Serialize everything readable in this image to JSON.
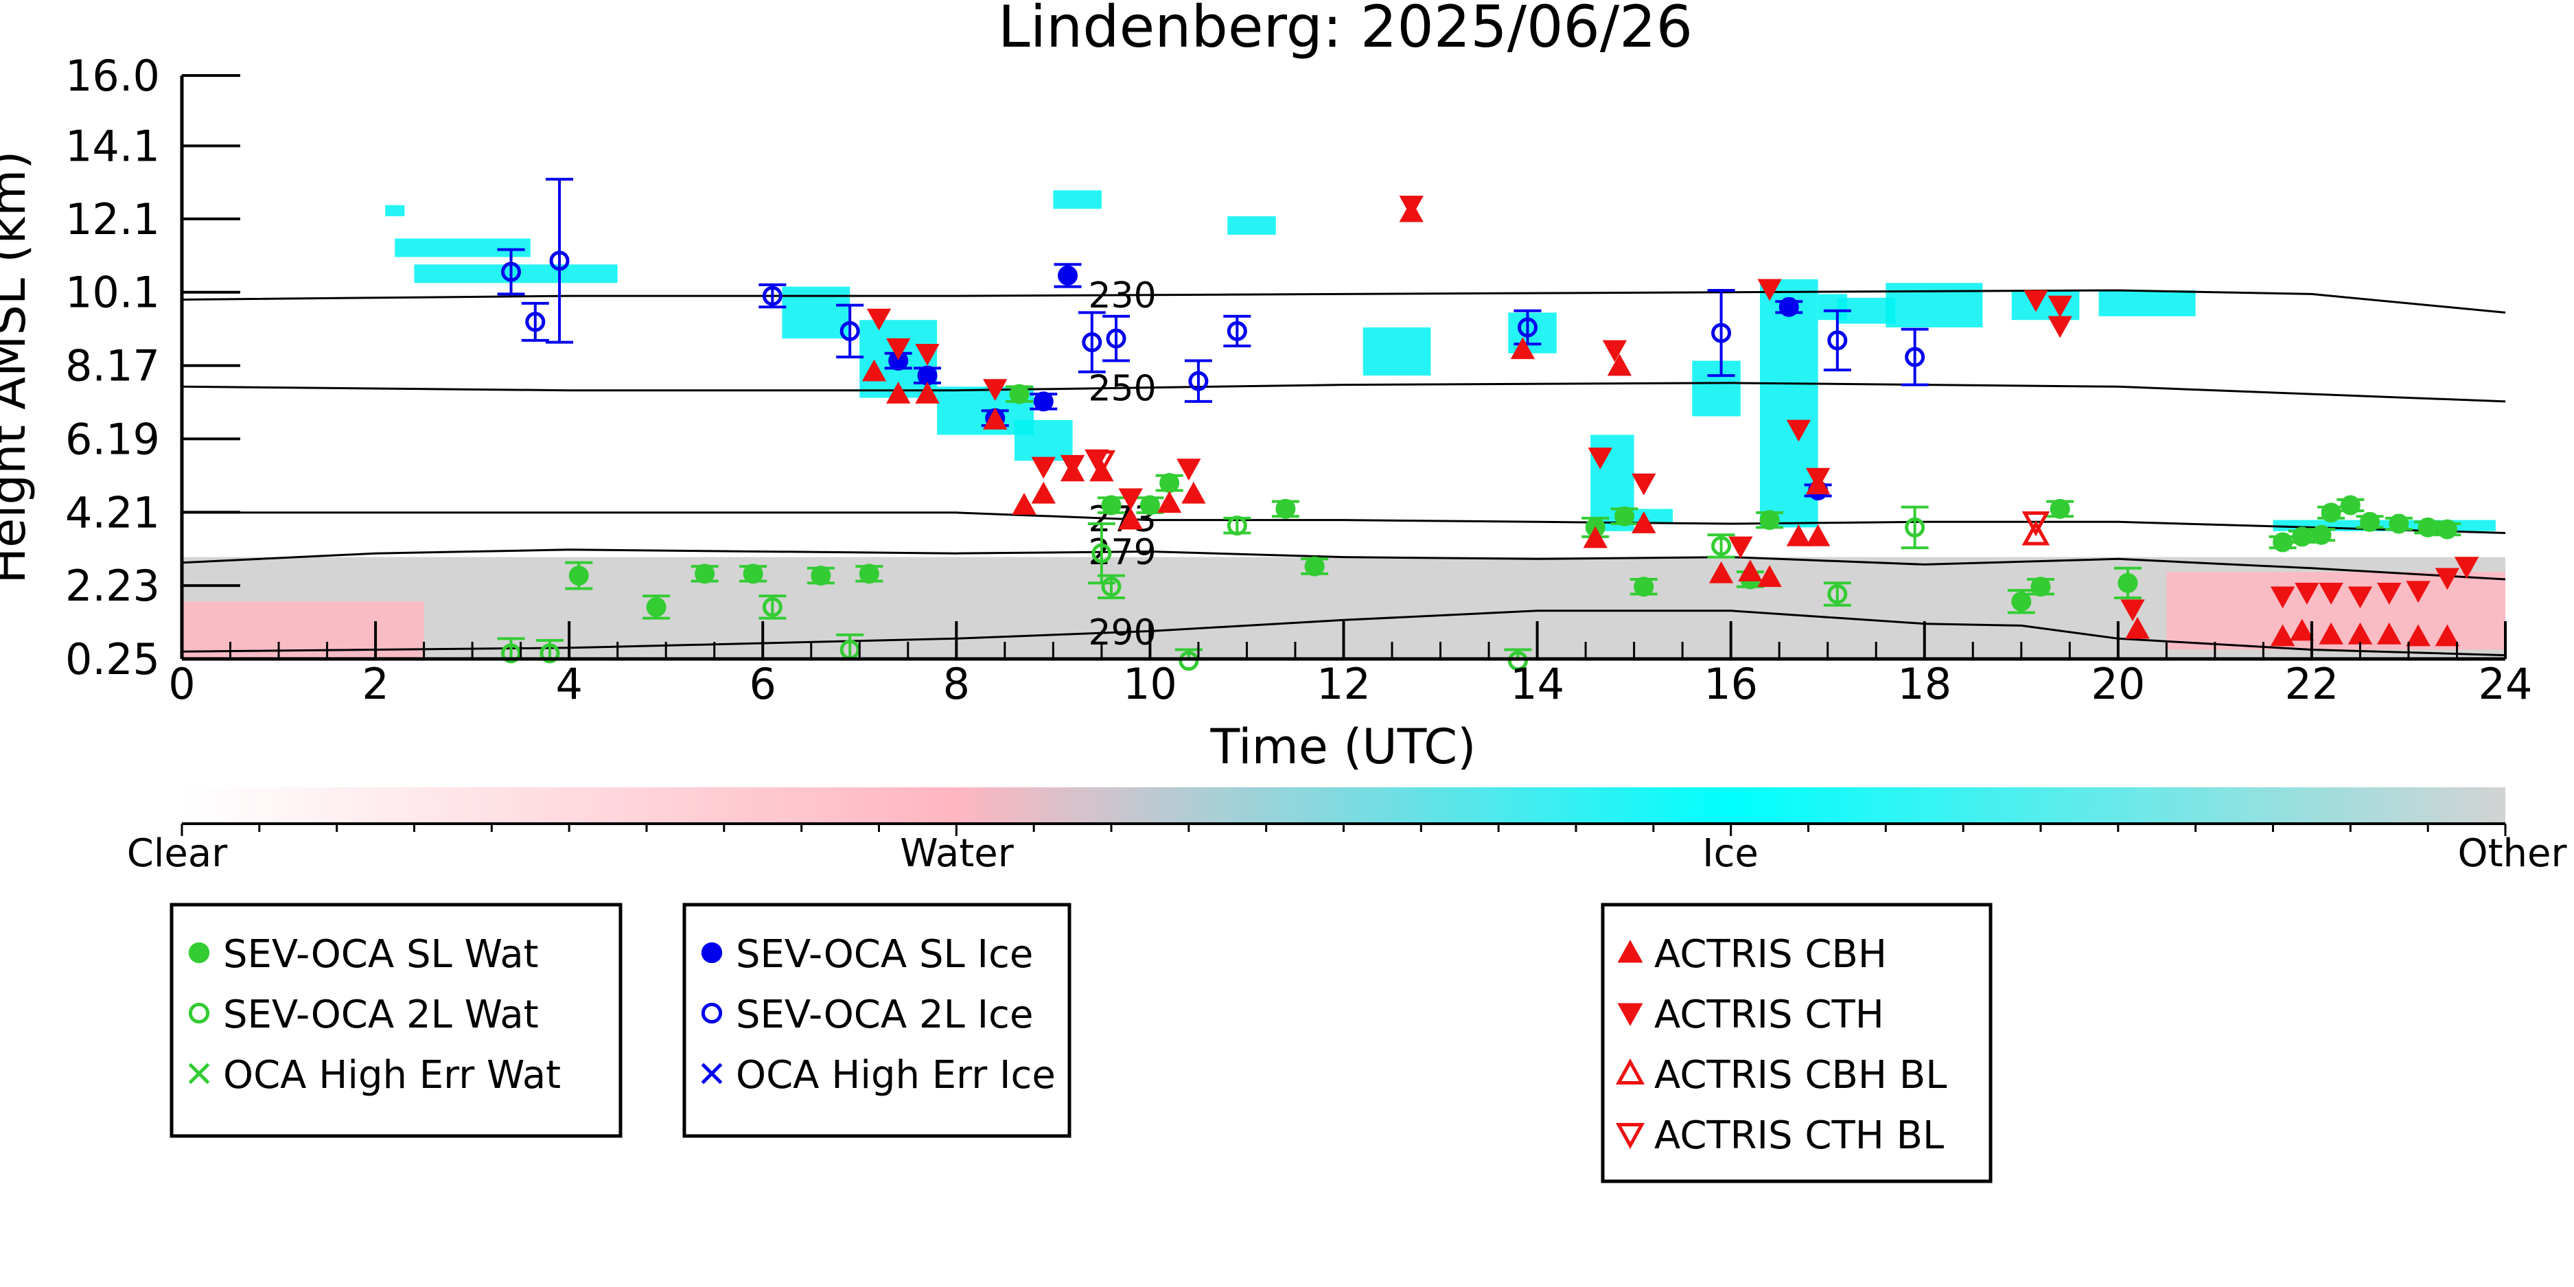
{
  "chart_data": {
    "type": "scatter",
    "title": "Lindenberg: 2025/06/26",
    "xlabel": "Time (UTC)",
    "ylabel": "Height AMSL (km)",
    "xlim": [
      0,
      24
    ],
    "ylim": [
      0.25,
      16.0
    ],
    "x_ticks": [
      "0",
      "2",
      "4",
      "6",
      "8",
      "10",
      "12",
      "14",
      "16",
      "18",
      "20",
      "22",
      "24"
    ],
    "y_ticks": [
      "0.25",
      "2.23",
      "4.21",
      "6.19",
      "8.17",
      "10.1",
      "12.1",
      "14.1",
      "16.0"
    ],
    "y_tick_values": [
      0.25,
      2.23,
      4.21,
      6.19,
      8.17,
      10.15,
      12.13,
      14.1,
      16.0
    ],
    "colors": {
      "water_marker": "#33cc33",
      "ice_marker": "#0000ee",
      "actris": "#ee1111",
      "ice_mask": "#00f2f2",
      "water_mask": "#ffb6c1",
      "other_mask": "#cfcfcf"
    },
    "colorbar": {
      "labels": [
        "Clear",
        "Water",
        "Ice",
        "Other"
      ],
      "stops": [
        "#ffffff",
        "#ffb6c1",
        "#00ffff",
        "#d3d3d3"
      ]
    },
    "contours": [
      {
        "label": "230",
        "label_x": 9.7,
        "points": [
          [
            0,
            9.95
          ],
          [
            4,
            10.05
          ],
          [
            8,
            10.05
          ],
          [
            12,
            10.1
          ],
          [
            16,
            10.15
          ],
          [
            20,
            10.2
          ],
          [
            22,
            10.1
          ],
          [
            24,
            9.6
          ]
        ]
      },
      {
        "label": "250",
        "label_x": 9.7,
        "points": [
          [
            0,
            7.6
          ],
          [
            4,
            7.5
          ],
          [
            8,
            7.5
          ],
          [
            12,
            7.65
          ],
          [
            16,
            7.7
          ],
          [
            20,
            7.6
          ],
          [
            22,
            7.4
          ],
          [
            24,
            7.2
          ]
        ]
      },
      {
        "label": "273",
        "label_x": 9.7,
        "points": [
          [
            0,
            4.2
          ],
          [
            4,
            4.2
          ],
          [
            8,
            4.2
          ],
          [
            10,
            4.0
          ],
          [
            12,
            4.0
          ],
          [
            14,
            3.95
          ],
          [
            16,
            3.9
          ],
          [
            18,
            3.95
          ],
          [
            20,
            3.95
          ],
          [
            22,
            3.8
          ],
          [
            24,
            3.65
          ]
        ]
      },
      {
        "label": "279",
        "label_x": 9.7,
        "points": [
          [
            0,
            2.85
          ],
          [
            2,
            3.1
          ],
          [
            4,
            3.2
          ],
          [
            8,
            3.1
          ],
          [
            10,
            3.15
          ],
          [
            12,
            3.0
          ],
          [
            14,
            2.95
          ],
          [
            16,
            3.0
          ],
          [
            18,
            2.8
          ],
          [
            20,
            2.95
          ],
          [
            22,
            2.7
          ],
          [
            24,
            2.4
          ]
        ]
      },
      {
        "label": "290",
        "label_x": 9.7,
        "points": [
          [
            0,
            0.45
          ],
          [
            4,
            0.55
          ],
          [
            8,
            0.8
          ],
          [
            10,
            1.0
          ],
          [
            12,
            1.3
          ],
          [
            14,
            1.55
          ],
          [
            16,
            1.55
          ],
          [
            18,
            1.2
          ],
          [
            19,
            1.15
          ],
          [
            20,
            0.8
          ],
          [
            22,
            0.5
          ],
          [
            24,
            0.35
          ]
        ]
      }
    ],
    "series": [
      {
        "name": "SEV-OCA SL Wat",
        "marker": "filled-circle",
        "color": "#33cc33",
        "points": [
          [
            4.1,
            2.5,
            0.35
          ],
          [
            4.9,
            1.65,
            0.3
          ],
          [
            5.4,
            2.55,
            0.2
          ],
          [
            5.9,
            2.55,
            0.2
          ],
          [
            6.6,
            2.5,
            0.2
          ],
          [
            7.1,
            2.55,
            0.2
          ],
          [
            8.65,
            7.4,
            0.2
          ],
          [
            9.6,
            4.4,
            0.2
          ],
          [
            10.0,
            4.4,
            0.2
          ],
          [
            10.2,
            5.0,
            0.2
          ],
          [
            11.4,
            4.3,
            0.2
          ],
          [
            11.7,
            2.75,
            0.2
          ],
          [
            14.6,
            3.8,
            0.25
          ],
          [
            14.9,
            4.1,
            0.2
          ],
          [
            15.1,
            2.2,
            0.2
          ],
          [
            16.2,
            2.4,
            0.2
          ],
          [
            16.4,
            4.0,
            0.2
          ],
          [
            19.0,
            1.8,
            0.3
          ],
          [
            19.2,
            2.2,
            0.2
          ],
          [
            19.4,
            4.3,
            0.2
          ],
          [
            20.1,
            2.3,
            0.4
          ],
          [
            21.7,
            3.4,
            0.15
          ],
          [
            21.9,
            3.55,
            0.15
          ],
          [
            22.1,
            3.6,
            0.15
          ],
          [
            22.2,
            4.2,
            0.15
          ],
          [
            22.4,
            4.4,
            0.15
          ],
          [
            22.6,
            3.95,
            0.15
          ],
          [
            22.9,
            3.9,
            0.15
          ],
          [
            23.2,
            3.8,
            0.15
          ],
          [
            23.4,
            3.75,
            0.15
          ]
        ]
      },
      {
        "name": "SEV-OCA 2L Wat",
        "marker": "open-circle",
        "color": "#33cc33",
        "points": [
          [
            3.4,
            0.4,
            0.4
          ],
          [
            3.8,
            0.4,
            0.35
          ],
          [
            6.1,
            1.65,
            0.3
          ],
          [
            6.9,
            0.5,
            0.4
          ],
          [
            9.5,
            3.1,
            0.8
          ],
          [
            9.6,
            2.2,
            0.3
          ],
          [
            10.4,
            0.2,
            0.3
          ],
          [
            10.9,
            3.85,
            0.2
          ],
          [
            13.8,
            0.2,
            0.3
          ],
          [
            15.9,
            3.3,
            0.3
          ],
          [
            17.1,
            2.0,
            0.3
          ],
          [
            17.9,
            3.8,
            0.55
          ]
        ]
      },
      {
        "name": "OCA High Err Wat",
        "marker": "x",
        "color": "#33cc33",
        "points": []
      },
      {
        "name": "SEV-OCA SL Ice",
        "marker": "filled-circle",
        "color": "#0000ee",
        "points": [
          [
            7.4,
            8.3,
            0.2
          ],
          [
            7.7,
            7.9,
            0.2
          ],
          [
            8.4,
            6.75,
            0.2
          ],
          [
            8.9,
            7.2,
            0.2
          ],
          [
            9.15,
            10.6,
            0.3
          ],
          [
            16.6,
            9.75,
            0.15
          ],
          [
            16.9,
            4.8,
            0.15
          ]
        ]
      },
      {
        "name": "SEV-OCA 2L Ice",
        "marker": "open-circle",
        "color": "#0000ee",
        "points": [
          [
            3.4,
            10.7,
            0.6
          ],
          [
            3.65,
            9.35,
            0.5
          ],
          [
            3.9,
            11.0,
            2.2
          ],
          [
            6.1,
            10.05,
            0.3
          ],
          [
            6.9,
            9.1,
            0.7
          ],
          [
            9.4,
            8.8,
            0.8
          ],
          [
            9.65,
            8.9,
            0.6
          ],
          [
            10.5,
            7.75,
            0.55
          ],
          [
            10.9,
            9.1,
            0.4
          ],
          [
            13.9,
            9.2,
            0.45
          ],
          [
            15.9,
            9.05,
            1.15
          ],
          [
            17.1,
            8.85,
            0.8
          ],
          [
            17.9,
            8.4,
            0.75
          ]
        ]
      },
      {
        "name": "OCA High Err Ice",
        "marker": "x",
        "color": "#0000ee",
        "points": []
      },
      {
        "name": "ACTRIS CBH",
        "marker": "triangle-up",
        "color": "#ee1111",
        "points": [
          [
            7.15,
            8.0
          ],
          [
            7.4,
            7.4
          ],
          [
            7.7,
            7.4
          ],
          [
            8.4,
            6.7
          ],
          [
            8.7,
            4.4
          ],
          [
            8.9,
            4.7
          ],
          [
            9.2,
            5.3
          ],
          [
            9.5,
            5.3
          ],
          [
            9.8,
            4.0
          ],
          [
            10.2,
            4.45
          ],
          [
            10.45,
            4.7
          ],
          [
            12.7,
            12.3
          ],
          [
            13.85,
            8.6
          ],
          [
            14.85,
            8.15
          ],
          [
            14.6,
            3.5
          ],
          [
            15.1,
            3.9
          ],
          [
            15.9,
            2.55
          ],
          [
            16.2,
            2.6
          ],
          [
            16.4,
            2.45
          ],
          [
            16.7,
            3.55
          ],
          [
            16.9,
            3.55
          ],
          [
            16.9,
            4.95
          ],
          [
            20.2,
            1.05
          ],
          [
            21.7,
            0.85
          ],
          [
            21.9,
            1.0
          ],
          [
            22.2,
            0.9
          ],
          [
            22.5,
            0.9
          ],
          [
            22.8,
            0.9
          ],
          [
            23.1,
            0.85
          ],
          [
            23.4,
            0.85
          ]
        ]
      },
      {
        "name": "ACTRIS CTH",
        "marker": "triangle-down",
        "color": "#ee1111",
        "points": [
          [
            7.2,
            9.45
          ],
          [
            7.4,
            8.65
          ],
          [
            7.7,
            8.5
          ],
          [
            8.4,
            7.55
          ],
          [
            8.9,
            5.45
          ],
          [
            9.2,
            5.5
          ],
          [
            9.45,
            5.65
          ],
          [
            9.8,
            4.6
          ],
          [
            10.4,
            5.4
          ],
          [
            12.7,
            12.5
          ],
          [
            14.8,
            8.6
          ],
          [
            14.65,
            5.7
          ],
          [
            15.1,
            5.0
          ],
          [
            16.1,
            3.3
          ],
          [
            16.4,
            10.25
          ],
          [
            16.7,
            6.45
          ],
          [
            16.9,
            5.15
          ],
          [
            19.15,
            9.95
          ],
          [
            19.4,
            9.8
          ],
          [
            19.4,
            9.25
          ],
          [
            20.15,
            1.6
          ],
          [
            21.7,
            1.95
          ],
          [
            21.95,
            2.05
          ],
          [
            22.2,
            2.05
          ],
          [
            22.5,
            1.95
          ],
          [
            22.8,
            2.05
          ],
          [
            23.1,
            2.1
          ],
          [
            23.4,
            2.45
          ],
          [
            23.6,
            2.75
          ]
        ]
      },
      {
        "name": "ACTRIS CBH BL",
        "marker": "open-triangle-up",
        "color": "#ee1111",
        "points": [
          [
            19.15,
            3.6
          ]
        ]
      },
      {
        "name": "ACTRIS CTH BL",
        "marker": "open-triangle-down",
        "color": "#ee1111",
        "points": [
          [
            9.5,
            5.6
          ],
          [
            19.15,
            3.95
          ]
        ]
      }
    ],
    "mask": {
      "other": [
        [
          0,
          24,
          0.25,
          3.0
        ]
      ],
      "water": [
        [
          0,
          2.5,
          0.3,
          1.8
        ],
        [
          20.5,
          24,
          0.5,
          2.6
        ]
      ],
      "ice": [
        [
          6.2,
          6.9,
          8.9,
          10.3
        ],
        [
          7.0,
          7.8,
          7.3,
          9.4
        ],
        [
          7.8,
          8.8,
          6.3,
          7.6
        ],
        [
          8.6,
          9.2,
          5.6,
          6.7
        ],
        [
          10.8,
          11.3,
          11.7,
          12.2
        ],
        [
          9.0,
          9.5,
          12.4,
          12.9
        ],
        [
          12.2,
          12.9,
          7.9,
          9.2
        ],
        [
          13.7,
          14.2,
          8.5,
          9.6
        ],
        [
          14.55,
          15.0,
          3.7,
          6.3
        ],
        [
          16.3,
          16.9,
          3.8,
          10.5
        ],
        [
          16.9,
          17.2,
          9.4,
          10.1
        ],
        [
          17.6,
          18.6,
          9.2,
          10.4
        ],
        [
          18.9,
          19.6,
          9.4,
          10.2
        ],
        [
          19.8,
          20.8,
          9.5,
          10.2
        ],
        [
          21.6,
          23.9,
          3.7,
          4.0
        ],
        [
          14.8,
          15.4,
          3.9,
          4.3
        ],
        [
          15.6,
          16.1,
          6.8,
          8.3
        ],
        [
          17.1,
          17.7,
          9.3,
          10.0
        ],
        [
          2.1,
          2.3,
          12.2,
          12.5
        ],
        [
          2.4,
          4.5,
          10.4,
          10.9
        ],
        [
          2.2,
          3.6,
          11.1,
          11.6
        ]
      ]
    }
  },
  "legend_boxes": [
    {
      "items": [
        {
          "label": "SEV-OCA SL Wat",
          "marker": "filled-circle",
          "color": "#33cc33"
        },
        {
          "label": "SEV-OCA 2L Wat",
          "marker": "open-circle",
          "color": "#33cc33"
        },
        {
          "label": "OCA High Err Wat",
          "marker": "x",
          "color": "#33cc33"
        }
      ]
    },
    {
      "items": [
        {
          "label": "SEV-OCA SL Ice",
          "marker": "filled-circle",
          "color": "#0000ee"
        },
        {
          "label": "SEV-OCA 2L Ice",
          "marker": "open-circle",
          "color": "#0000ee"
        },
        {
          "label": "OCA High Err Ice",
          "marker": "x",
          "color": "#0000ee"
        }
      ]
    },
    {
      "items": [
        {
          "label": "ACTRIS CBH",
          "marker": "triangle-up",
          "color": "#ee1111"
        },
        {
          "label": "ACTRIS CTH",
          "marker": "triangle-down",
          "color": "#ee1111"
        },
        {
          "label": "ACTRIS CBH BL",
          "marker": "open-triangle-up",
          "color": "#ee1111"
        },
        {
          "label": "ACTRIS CTH BL",
          "marker": "open-triangle-down",
          "color": "#ee1111"
        }
      ]
    }
  ]
}
